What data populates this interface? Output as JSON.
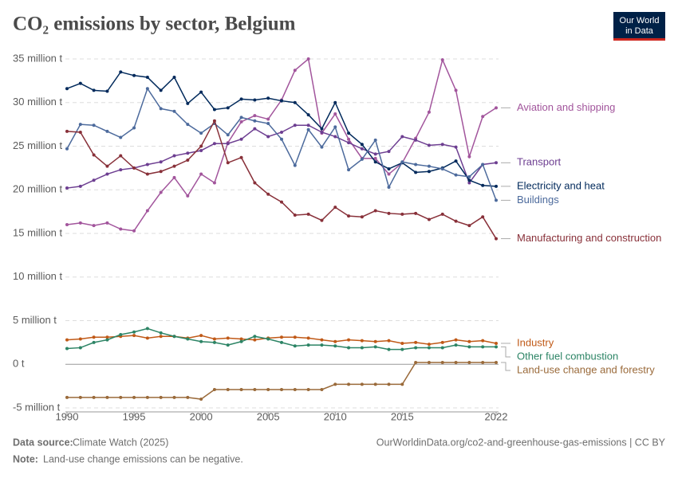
{
  "chart_data": {
    "type": "line",
    "title": "CO₂ emissions by sector, Belgium",
    "logo": [
      "Our World",
      "in Data"
    ],
    "source_label": "Data source:",
    "source": "Climate Watch (2025)",
    "url": "OurWorldinData.org/co2-and-greenhouse-gas-emissions | CC BY",
    "note_label": "Note:",
    "note": "Land-use change emissions can be negative.",
    "x": [
      1990,
      1991,
      1992,
      1993,
      1994,
      1995,
      1996,
      1997,
      1998,
      1999,
      2000,
      2001,
      2002,
      2003,
      2004,
      2005,
      2006,
      2007,
      2008,
      2009,
      2010,
      2011,
      2012,
      2013,
      2014,
      2015,
      2016,
      2017,
      2018,
      2019,
      2020,
      2021,
      2022
    ],
    "xlim": [
      1990,
      2022
    ],
    "xticks": [
      1990,
      1995,
      2000,
      2005,
      2010,
      2015,
      2022
    ],
    "ylim": [
      -5,
      35
    ],
    "yticks": [
      {
        "value": -5,
        "label": "-5 million t"
      },
      {
        "value": 0,
        "label": "0 t"
      },
      {
        "value": 5,
        "label": "5 million t"
      },
      {
        "value": 10,
        "label": "10 million t"
      },
      {
        "value": 15,
        "label": "15 million t"
      },
      {
        "value": 20,
        "label": "20 million t"
      },
      {
        "value": 25,
        "label": "25 million t"
      },
      {
        "value": 30,
        "label": "30 million t"
      },
      {
        "value": 35,
        "label": "35 million t"
      }
    ],
    "grid": true,
    "series": [
      {
        "name": "Aviation and shipping",
        "color": "#a2559c",
        "values": [
          16.0,
          16.2,
          15.9,
          16.2,
          15.5,
          15.3,
          17.6,
          19.7,
          21.4,
          19.3,
          21.8,
          20.8,
          25.4,
          27.8,
          28.5,
          28.1,
          30.3,
          33.7,
          35.0,
          26.5,
          28.7,
          25.8,
          23.6,
          23.6,
          21.8,
          23.1,
          25.9,
          28.9,
          34.9,
          31.4,
          23.8,
          28.4,
          29.4
        ]
      },
      {
        "name": "Transport",
        "color": "#6d3e91",
        "values": [
          20.2,
          20.4,
          21.1,
          21.8,
          22.3,
          22.5,
          22.9,
          23.2,
          23.9,
          24.2,
          24.5,
          25.3,
          25.3,
          25.8,
          27.0,
          26.1,
          26.6,
          27.4,
          27.4,
          26.6,
          26.1,
          25.4,
          24.7,
          24.1,
          24.4,
          26.1,
          25.7,
          25.1,
          25.2,
          24.9,
          20.8,
          22.9,
          23.1
        ]
      },
      {
        "name": "Electricity and heat",
        "color": "#00295b",
        "values": [
          31.6,
          32.2,
          31.4,
          31.3,
          33.5,
          33.1,
          32.9,
          31.4,
          32.9,
          29.9,
          31.2,
          29.2,
          29.4,
          30.4,
          30.3,
          30.5,
          30.2,
          30.0,
          28.6,
          27.0,
          30.0,
          26.5,
          25.2,
          23.2,
          22.4,
          23.1,
          22.0,
          22.1,
          22.5,
          23.3,
          21.1,
          20.5,
          20.4
        ]
      },
      {
        "name": "Buildings",
        "color": "#4c6a9c",
        "values": [
          24.7,
          27.5,
          27.4,
          26.7,
          26.0,
          27.1,
          31.6,
          29.3,
          29.0,
          27.5,
          26.5,
          27.6,
          26.3,
          28.3,
          27.9,
          27.6,
          25.8,
          22.8,
          26.9,
          24.9,
          27.2,
          22.3,
          23.5,
          25.7,
          20.3,
          23.2,
          22.9,
          22.7,
          22.4,
          21.7,
          21.5,
          22.9,
          18.8
        ]
      },
      {
        "name": "Manufacturing and construction",
        "color": "#883039",
        "values": [
          26.7,
          26.6,
          24.0,
          22.7,
          23.9,
          22.5,
          21.8,
          22.1,
          22.7,
          23.4,
          25.0,
          27.9,
          23.1,
          23.7,
          20.8,
          19.5,
          18.6,
          17.1,
          17.2,
          16.5,
          18.0,
          17.0,
          16.9,
          17.6,
          17.3,
          17.2,
          17.3,
          16.6,
          17.2,
          16.4,
          15.9,
          16.9,
          14.4
        ]
      },
      {
        "name": "Industry",
        "color": "#c05917",
        "values": [
          2.8,
          2.9,
          3.1,
          3.1,
          3.2,
          3.3,
          3.0,
          3.2,
          3.2,
          3.0,
          3.3,
          2.9,
          3.0,
          2.9,
          2.8,
          3.0,
          3.1,
          3.1,
          3.0,
          2.8,
          2.6,
          2.8,
          2.7,
          2.6,
          2.7,
          2.4,
          2.5,
          2.3,
          2.5,
          2.8,
          2.6,
          2.7,
          2.4
        ]
      },
      {
        "name": "Other fuel combustion",
        "color": "#2c8465",
        "values": [
          1.8,
          1.9,
          2.5,
          2.8,
          3.4,
          3.7,
          4.1,
          3.6,
          3.2,
          2.9,
          2.6,
          2.5,
          2.2,
          2.6,
          3.2,
          2.9,
          2.5,
          2.1,
          2.2,
          2.2,
          2.1,
          1.9,
          1.9,
          2.0,
          1.7,
          1.7,
          1.9,
          1.9,
          1.9,
          2.2,
          2.0,
          2.0,
          2.0
        ]
      },
      {
        "name": "Land-use change and forestry",
        "color": "#9a6a3a",
        "values": [
          -3.8,
          -3.8,
          -3.8,
          -3.8,
          -3.8,
          -3.8,
          -3.8,
          -3.8,
          -3.8,
          -3.8,
          -4.0,
          -2.9,
          -2.9,
          -2.9,
          -2.9,
          -2.9,
          -2.9,
          -2.9,
          -2.9,
          -2.9,
          -2.3,
          -2.3,
          -2.3,
          -2.3,
          -2.3,
          -2.3,
          0.2,
          0.2,
          0.2,
          0.2,
          0.2,
          0.2,
          0.2
        ]
      }
    ]
  }
}
